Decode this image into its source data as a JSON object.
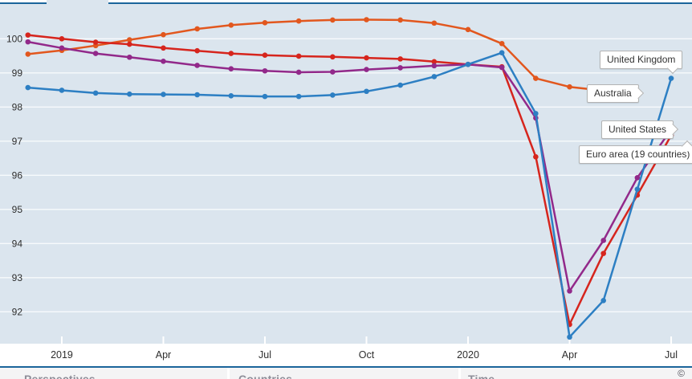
{
  "chart_data": {
    "type": "line",
    "title": "",
    "x": [
      "Dec 2018",
      "Jan 2019",
      "Feb 2019",
      "Mar 2019",
      "Apr 2019",
      "May 2019",
      "Jun 2019",
      "Jul 2019",
      "Aug 2019",
      "Sep 2019",
      "Oct 2019",
      "Nov 2019",
      "Dec 2019",
      "Jan 2020",
      "Feb 2020",
      "Mar 2020",
      "Apr 2020",
      "May 2020",
      "Jun 2020",
      "Jul 2020"
    ],
    "series": [
      {
        "name": "Australia",
        "color": "#e2571e",
        "values": [
          99.55,
          99.66,
          99.8,
          99.97,
          100.12,
          100.29,
          100.4,
          100.47,
          100.52,
          100.55,
          100.56,
          100.55,
          100.46,
          100.27,
          99.86,
          98.84,
          98.59,
          98.48,
          98.41,
          null
        ]
      },
      {
        "name": "Euro area (19 countries)",
        "color": "#d6251d",
        "values": [
          100.11,
          100.0,
          99.9,
          99.84,
          99.73,
          99.65,
          99.57,
          99.52,
          99.49,
          99.47,
          99.44,
          99.41,
          99.33,
          99.25,
          99.18,
          96.54,
          91.63,
          93.71,
          95.42,
          97.17
        ]
      },
      {
        "name": "United States",
        "color": "#92298a",
        "values": [
          99.91,
          99.73,
          99.57,
          99.46,
          99.34,
          99.22,
          99.12,
          99.06,
          99.02,
          99.03,
          99.1,
          99.15,
          99.21,
          99.25,
          99.16,
          97.68,
          92.61,
          94.09,
          95.93,
          97.34
        ]
      },
      {
        "name": "United Kingdom",
        "color": "#2d7fc3",
        "values": [
          98.57,
          98.49,
          98.41,
          98.38,
          98.37,
          98.36,
          98.33,
          98.31,
          98.31,
          98.35,
          98.46,
          98.64,
          98.89,
          99.25,
          99.59,
          97.81,
          91.26,
          92.33,
          95.59,
          98.84
        ]
      }
    ],
    "yticks": [
      100,
      99,
      98,
      97,
      96,
      95,
      94,
      93,
      92
    ],
    "ylim": [
      91.0,
      100.85
    ],
    "x_ticks": [
      {
        "index": 1,
        "label": "2019"
      },
      {
        "index": 4,
        "label": "Apr"
      },
      {
        "index": 7,
        "label": "Jul"
      },
      {
        "index": 10,
        "label": "Oct"
      },
      {
        "index": 13,
        "label": "2020"
      },
      {
        "index": 16,
        "label": "Apr"
      },
      {
        "index": 19,
        "label": "Jul"
      }
    ],
    "grid": true,
    "legend_position": "inline-callouts",
    "colors": {
      "plot_background": "#dbe5ee",
      "gridline": "#f7fafc",
      "rule": "#1b659b",
      "axis_text": "#2e2e2e"
    }
  },
  "callouts": {
    "united_kingdom": "United Kingdom",
    "australia": "Australia",
    "united_states": "United States",
    "euro_area": "Euro area (19 countries)"
  },
  "footer": {
    "sections": [
      {
        "label": "Perspectives"
      },
      {
        "label": "Countries"
      },
      {
        "label": "Time"
      }
    ],
    "copyright": "©"
  }
}
